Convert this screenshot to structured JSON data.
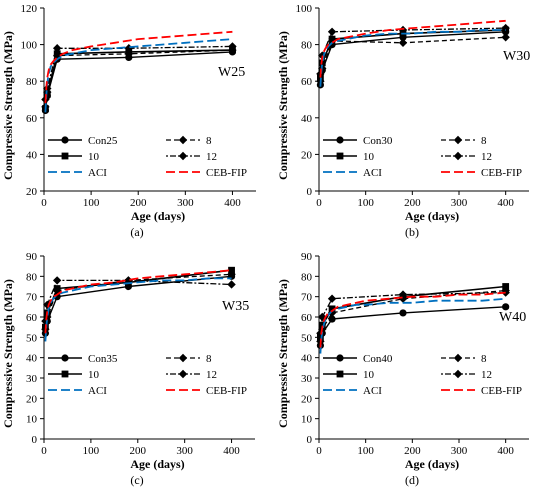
{
  "legend_labels": {
    "s1": [
      "Con25",
      "Con30",
      "Con35",
      "Con40"
    ],
    "s2": "8",
    "s3": "10",
    "s4": "12",
    "s5": "ACI",
    "s6": "CEB-FIP"
  },
  "styles": {
    "colors": [
      "#000000",
      "#000000",
      "#000000",
      "#000000",
      "#0070C0",
      "#FF0000"
    ],
    "dash": [
      "",
      "5,3",
      "",
      "2,2,6,2",
      "9,4",
      "9,4"
    ],
    "marker": [
      "circle",
      "diamond",
      "square",
      "diamond",
      "none",
      "none"
    ],
    "width": [
      1.4,
      1.3,
      1.6,
      1.3,
      1.8,
      1.8
    ]
  },
  "chart_data": [
    {
      "type": "line",
      "panel": "(a)",
      "annotation": "W25",
      "xlabel": "Age (days)",
      "ylabel": "Compressive Strength (MPa)",
      "xlim": [
        0,
        450
      ],
      "ylim": [
        20,
        120
      ],
      "xticks": [
        0,
        100,
        200,
        300,
        400
      ],
      "yticks": [
        20,
        40,
        60,
        80,
        100,
        120
      ],
      "grid": false,
      "series": [
        {
          "name": "Con25",
          "x": [
            3,
            7,
            28,
            180,
            400
          ],
          "y": [
            64,
            72,
            92,
            93,
            96
          ]
        },
        {
          "name": "8",
          "x": [
            3,
            7,
            28,
            180,
            400
          ],
          "y": [
            66,
            74,
            94,
            95,
            97
          ]
        },
        {
          "name": "10",
          "x": [
            3,
            7,
            28,
            180,
            400
          ],
          "y": [
            65,
            73,
            95,
            96,
            97
          ]
        },
        {
          "name": "12",
          "x": [
            3,
            7,
            28,
            180,
            400
          ],
          "y": [
            70,
            76,
            98,
            98,
            99
          ]
        },
        {
          "name": "ACI",
          "x": [
            3,
            5,
            7,
            10,
            14,
            20,
            28,
            40,
            60,
            80,
            100,
            150,
            200,
            250,
            300,
            350,
            400
          ],
          "y": [
            63,
            73,
            79,
            84,
            88,
            90,
            92,
            94,
            95,
            96,
            97,
            98,
            99,
            100,
            101,
            102,
            103
          ]
        },
        {
          "name": "CEB-FIP",
          "x": [
            3,
            5,
            7,
            10,
            14,
            20,
            28,
            40,
            60,
            80,
            100,
            150,
            200,
            250,
            300,
            350,
            400
          ],
          "y": [
            68,
            77,
            82,
            86,
            89,
            91,
            93,
            95,
            97,
            98,
            99,
            101,
            103,
            104,
            105,
            106,
            107
          ]
        }
      ]
    },
    {
      "type": "line",
      "panel": "(b)",
      "annotation": "W30",
      "xlabel": "Age (days)",
      "ylabel": "Compressive Strength (MPa)",
      "xlim": [
        0,
        450
      ],
      "ylim": [
        0,
        100
      ],
      "xticks": [
        0,
        100,
        200,
        300,
        400
      ],
      "yticks": [
        0,
        20,
        40,
        60,
        80,
        100
      ],
      "grid": false,
      "series": [
        {
          "name": "Con30",
          "x": [
            3,
            7,
            28,
            180,
            400
          ],
          "y": [
            58,
            66,
            80,
            84,
            87
          ]
        },
        {
          "name": "8",
          "x": [
            3,
            7,
            28,
            180,
            400
          ],
          "y": [
            60,
            67,
            82,
            81,
            84
          ]
        },
        {
          "name": "10",
          "x": [
            3,
            7,
            28,
            180,
            400
          ],
          "y": [
            62,
            70,
            83,
            86,
            88
          ]
        },
        {
          "name": "12",
          "x": [
            3,
            7,
            28,
            180,
            400
          ],
          "y": [
            64,
            74,
            87,
            88,
            89
          ]
        },
        {
          "name": "ACI",
          "x": [
            3,
            5,
            7,
            10,
            14,
            20,
            28,
            40,
            60,
            80,
            100,
            150,
            200,
            250,
            300,
            350,
            400
          ],
          "y": [
            57,
            65,
            70,
            74,
            77,
            79,
            81,
            82,
            83,
            84,
            85,
            86,
            86,
            87,
            87,
            88,
            88
          ]
        },
        {
          "name": "CEB-FIP",
          "x": [
            3,
            5,
            7,
            10,
            14,
            20,
            28,
            40,
            60,
            80,
            100,
            150,
            200,
            250,
            300,
            350,
            400
          ],
          "y": [
            62,
            69,
            73,
            76,
            78,
            80,
            81,
            83,
            84,
            85,
            86,
            88,
            89,
            90,
            91,
            92,
            93
          ]
        }
      ]
    },
    {
      "type": "line",
      "panel": "(c)",
      "annotation": "W35",
      "xlabel": "Age (days)",
      "ylabel": "Compressive Strength (MPa)",
      "xlim": [
        0,
        450
      ],
      "ylim": [
        0,
        90
      ],
      "xticks": [
        0,
        100,
        200,
        300,
        400
      ],
      "yticks": [
        0,
        10,
        20,
        30,
        40,
        50,
        60,
        70,
        80,
        90
      ],
      "grid": false,
      "series": [
        {
          "name": "Con35",
          "x": [
            3,
            7,
            28,
            180,
            400
          ],
          "y": [
            52,
            58,
            70,
            75,
            80
          ]
        },
        {
          "name": "8",
          "x": [
            3,
            7,
            28,
            180,
            400
          ],
          "y": [
            54,
            60,
            73,
            78,
            81
          ]
        },
        {
          "name": "10",
          "x": [
            3,
            7,
            28,
            180,
            400
          ],
          "y": [
            55,
            62,
            74,
            77,
            83
          ]
        },
        {
          "name": "12",
          "x": [
            3,
            7,
            28,
            180,
            400
          ],
          "y": [
            58,
            66,
            78,
            78,
            76
          ]
        },
        {
          "name": "ACI",
          "x": [
            3,
            5,
            7,
            10,
            14,
            20,
            28,
            40,
            60,
            80,
            100,
            150,
            200,
            250,
            300,
            350,
            400
          ],
          "y": [
            48,
            55,
            60,
            64,
            67,
            69,
            71,
            72,
            73,
            74,
            75,
            76,
            77,
            78,
            78,
            79,
            79
          ]
        },
        {
          "name": "CEB-FIP",
          "x": [
            3,
            5,
            7,
            10,
            14,
            20,
            28,
            40,
            60,
            80,
            100,
            150,
            200,
            250,
            300,
            350,
            400
          ],
          "y": [
            52,
            59,
            63,
            66,
            68,
            70,
            71,
            73,
            74,
            75,
            76,
            77,
            79,
            80,
            81,
            82,
            83
          ]
        }
      ]
    },
    {
      "type": "line",
      "panel": "(d)",
      "annotation": "W40",
      "xlabel": "Age (days)",
      "ylabel": "Compressive Strength (MPa)",
      "xlim": [
        0,
        450
      ],
      "ylim": [
        0,
        90
      ],
      "xticks": [
        0,
        100,
        200,
        300,
        400
      ],
      "yticks": [
        0,
        10,
        20,
        30,
        40,
        50,
        60,
        70,
        80,
        90
      ],
      "grid": false,
      "series": [
        {
          "name": "Con40",
          "x": [
            3,
            7,
            28,
            180,
            400
          ],
          "y": [
            46,
            52,
            59,
            62,
            65
          ]
        },
        {
          "name": "8",
          "x": [
            3,
            7,
            28,
            180,
            400
          ],
          "y": [
            48,
            54,
            62,
            69,
            73
          ]
        },
        {
          "name": "10",
          "x": [
            3,
            7,
            28,
            180,
            400
          ],
          "y": [
            50,
            56,
            64,
            70,
            75
          ]
        },
        {
          "name": "12",
          "x": [
            3,
            7,
            28,
            180,
            400
          ],
          "y": [
            52,
            60,
            69,
            71,
            72
          ]
        },
        {
          "name": "ACI",
          "x": [
            3,
            5,
            7,
            10,
            14,
            20,
            28,
            40,
            60,
            80,
            100,
            150,
            200,
            250,
            300,
            350,
            400
          ],
          "y": [
            42,
            49,
            53,
            56,
            59,
            61,
            63,
            64,
            65,
            66,
            66,
            67,
            67,
            68,
            68,
            68,
            69
          ]
        },
        {
          "name": "CEB-FIP",
          "x": [
            3,
            5,
            7,
            10,
            14,
            20,
            28,
            40,
            60,
            80,
            100,
            150,
            200,
            250,
            300,
            350,
            400
          ],
          "y": [
            45,
            52,
            55,
            58,
            60,
            62,
            63,
            65,
            66,
            67,
            68,
            69,
            70,
            70,
            71,
            71,
            72
          ]
        }
      ]
    }
  ]
}
